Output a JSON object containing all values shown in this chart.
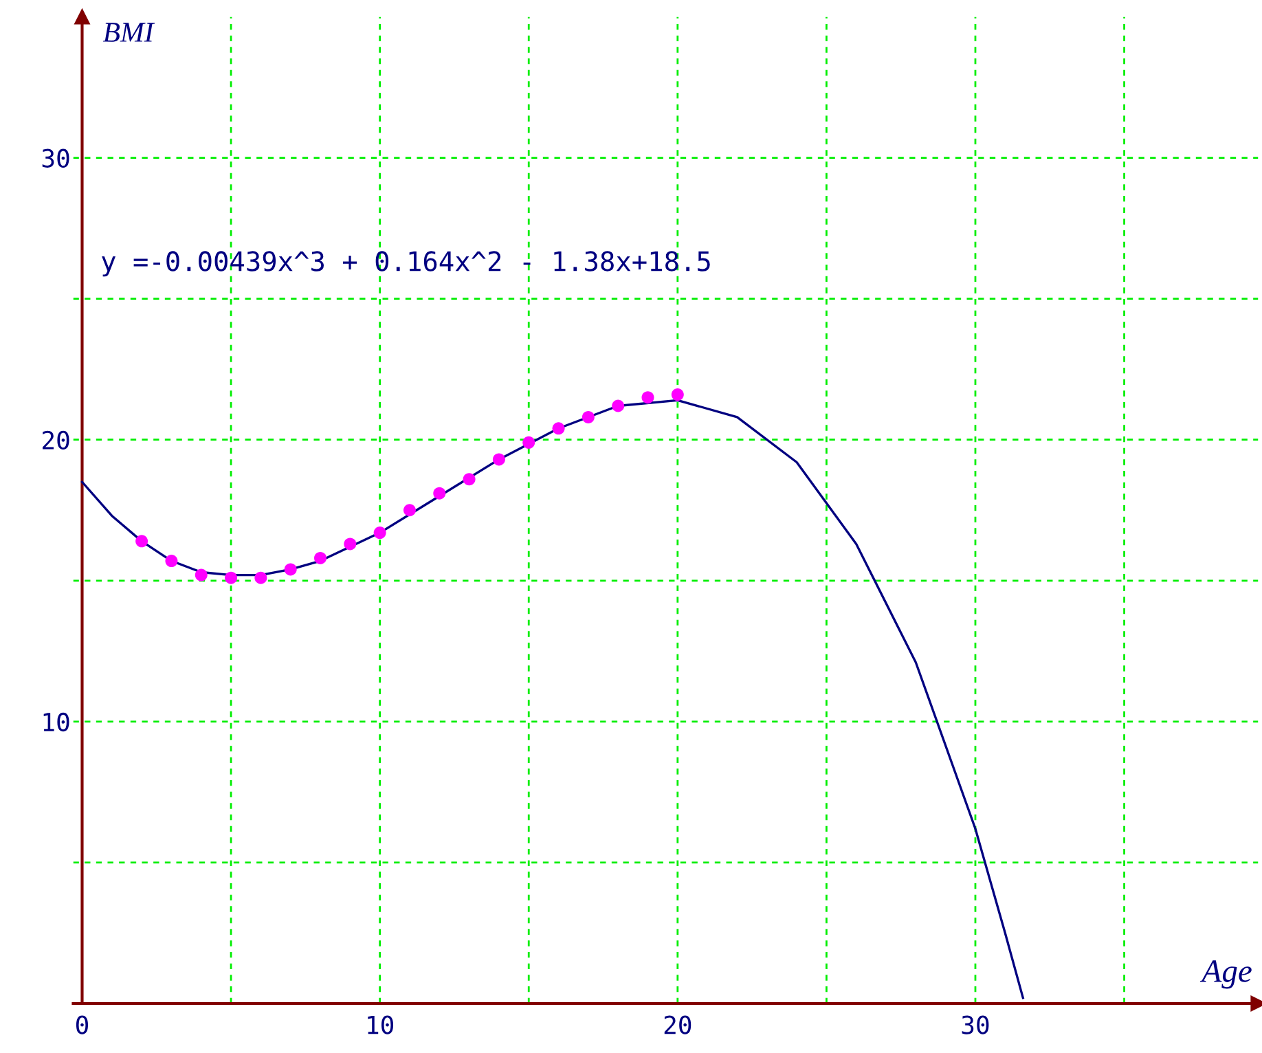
{
  "chart_data": {
    "type": "scatter",
    "xlabel": "Age",
    "ylabel": "BMI",
    "annotations": [
      "y =-0.00439x^3 + 0.164x^2 - 1.38x+18.5"
    ],
    "series": [
      {
        "color": "#ff00ff",
        "marker": "circle",
        "x": [
          2,
          3,
          4,
          5,
          6,
          7,
          8,
          9,
          10,
          11,
          12,
          13,
          14,
          15,
          16,
          17,
          18,
          19,
          20
        ],
        "values": [
          16.4,
          15.7,
          15.2,
          15.1,
          15.1,
          15.4,
          15.8,
          16.3,
          16.7,
          17.5,
          18.1,
          18.6,
          19.3,
          19.9,
          20.4,
          20.8,
          21.2,
          21.5,
          21.6
        ]
      },
      {
        "type": "line",
        "color": "#000080",
        "marker": "none",
        "line_style": "solid",
        "x": [
          0,
          1,
          2,
          3,
          4,
          5,
          6,
          7,
          8,
          9,
          10,
          12,
          14,
          16,
          18,
          20,
          22,
          24,
          26,
          28,
          30,
          31,
          31.6
        ],
        "values": [
          18.5,
          17.3,
          16.4,
          15.7,
          15.3,
          15.2,
          15.2,
          15.4,
          15.7,
          16.2,
          16.7,
          18.0,
          19.3,
          20.4,
          21.2,
          21.4,
          20.8,
          19.2,
          16.3,
          12.1,
          6.2,
          2.5,
          0.2
        ]
      }
    ],
    "xlim": [
      -0.3,
      39.5
    ],
    "ylim": [
      0,
      35
    ],
    "xticks": [
      0,
      {
        "value": 5,
        "label": null
      },
      10,
      {
        "value": 15,
        "label": null
      },
      20,
      {
        "value": 25,
        "label": null
      },
      30,
      {
        "value": 35,
        "label": null
      }
    ],
    "yticks": [
      {
        "value": 5,
        "label": null
      },
      10,
      {
        "value": 15,
        "label": null
      },
      20,
      {
        "value": 25,
        "label": null
      },
      30
    ],
    "grid": true,
    "legend": false
  }
}
